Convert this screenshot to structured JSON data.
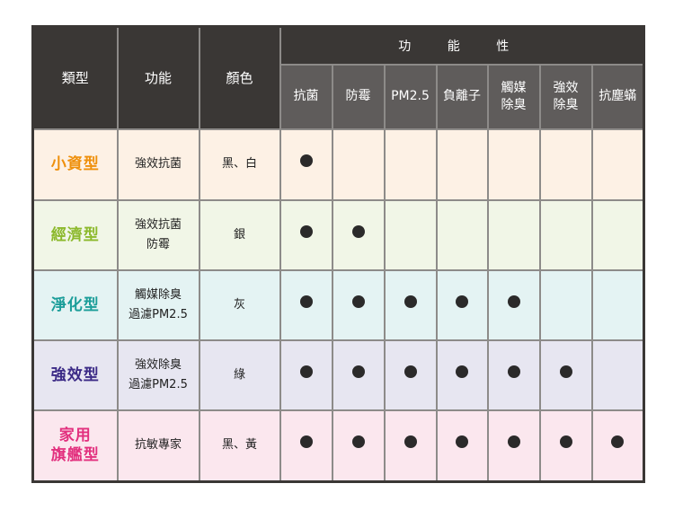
{
  "header": {
    "type": "類型",
    "function": "功能",
    "color": "顏色",
    "group": "功 能 性",
    "features": [
      "抗菌",
      "防霉",
      "PM2.5",
      "負離子",
      "觸媒\n除臭",
      "強效\n除臭",
      "抗塵蟎"
    ]
  },
  "rows": [
    {
      "type": "小資型",
      "function": "強效抗菌",
      "color": "黑、白",
      "features": [
        true,
        false,
        false,
        false,
        false,
        false,
        false
      ],
      "bg": "#fdf1e5",
      "accent": "#ef900c"
    },
    {
      "type": "經濟型",
      "function": "強效抗菌\n防霉",
      "color": "銀",
      "features": [
        true,
        true,
        false,
        false,
        false,
        false,
        false
      ],
      "bg": "#f1f6e7",
      "accent": "#8cb92c"
    },
    {
      "type": "淨化型",
      "function": "觸媒除臭\n過濾PM2.5",
      "color": "灰",
      "features": [
        true,
        true,
        true,
        true,
        true,
        false,
        false
      ],
      "bg": "#e4f3f3",
      "accent": "#1a9d99"
    },
    {
      "type": "強效型",
      "function": "強效除臭\n過濾PM2.5",
      "color": "綠",
      "features": [
        true,
        true,
        true,
        true,
        true,
        true,
        false
      ],
      "bg": "#e7e6f1",
      "accent": "#3b2a86"
    },
    {
      "type": "家用\n旗艦型",
      "function": "抗敏專家",
      "color": "黑、黃",
      "features": [
        true,
        true,
        true,
        true,
        true,
        true,
        true
      ],
      "bg": "#fbe7ee",
      "accent": "#e2307e"
    }
  ]
}
